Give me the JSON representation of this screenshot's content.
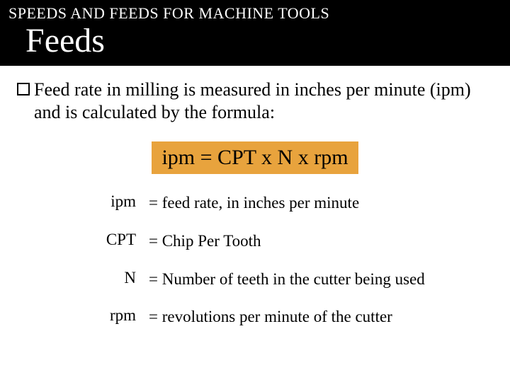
{
  "header": {
    "eyebrow": "SPEEDS AND FEEDS FOR MACHINE TOOLS",
    "title": "Feeds"
  },
  "body": {
    "intro": "Feed rate in milling is measured in inches per minute (ipm) and is calculated by the formula:"
  },
  "formula": {
    "text": "ipm = CPT x N x rpm",
    "background_color": "#e8a33d"
  },
  "definitions": [
    {
      "term": "ipm",
      "desc": "= feed rate, in inches per minute"
    },
    {
      "term": "CPT",
      "desc": "= Chip Per Tooth"
    },
    {
      "term": "N",
      "desc": "= Number of teeth in the cutter being used"
    },
    {
      "term": "rpm",
      "desc": "= revolutions per minute of the  cutter"
    }
  ],
  "colors": {
    "header_bg": "#000000",
    "header_text": "#ffffff",
    "page_bg": "#ffffff",
    "body_text": "#000000"
  },
  "typography": {
    "eyebrow_fontsize": 22,
    "title_fontsize": 48,
    "body_fontsize": 26,
    "formula_fontsize": 30,
    "def_fontsize": 23
  }
}
